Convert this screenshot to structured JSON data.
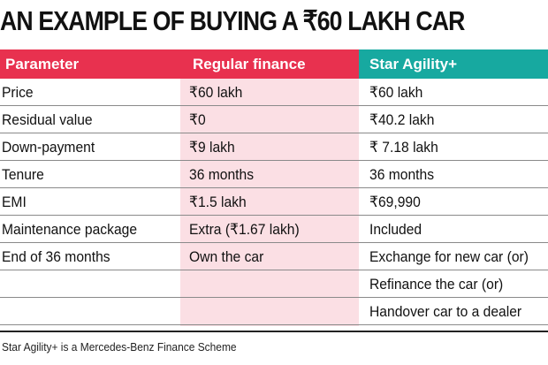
{
  "title": "AN EXAMPLE OF BUYING A ₹60 LAKH CAR",
  "colors": {
    "param_header": "#e8314f",
    "regular_header": "#e8314f",
    "star_header": "#17a9a0",
    "regular_column_bg": "#fbdfe4",
    "row_line": "#8a8a8a"
  },
  "table": {
    "headers": {
      "parameter": "Parameter",
      "regular": "Regular finance",
      "star": "Star Agility+"
    },
    "rows": [
      {
        "parameter": "Price",
        "regular": "₹60 lakh",
        "star": "₹60 lakh"
      },
      {
        "parameter": "Residual value",
        "regular": "₹0",
        "star": "₹40.2 lakh"
      },
      {
        "parameter": "Down-payment",
        "regular": "₹9 lakh",
        "star": "₹ 7.18 lakh"
      },
      {
        "parameter": "Tenure",
        "regular": "36 months",
        "star": "36 months"
      },
      {
        "parameter": "EMI",
        "regular": "₹1.5 lakh",
        "star": "₹69,990"
      },
      {
        "parameter": "Maintenance package",
        "regular": "Extra (₹1.67 lakh)",
        "star": "Included"
      },
      {
        "parameter": "End of 36 months",
        "regular": "Own the car",
        "star": "Exchange for new car (or)"
      },
      {
        "parameter": "",
        "regular": "",
        "star": "Refinance the car (or)"
      },
      {
        "parameter": "",
        "regular": "",
        "star": "Handover car to a dealer"
      }
    ]
  },
  "footnote": "Star Agility+ is a Mercedes-Benz Finance Scheme"
}
